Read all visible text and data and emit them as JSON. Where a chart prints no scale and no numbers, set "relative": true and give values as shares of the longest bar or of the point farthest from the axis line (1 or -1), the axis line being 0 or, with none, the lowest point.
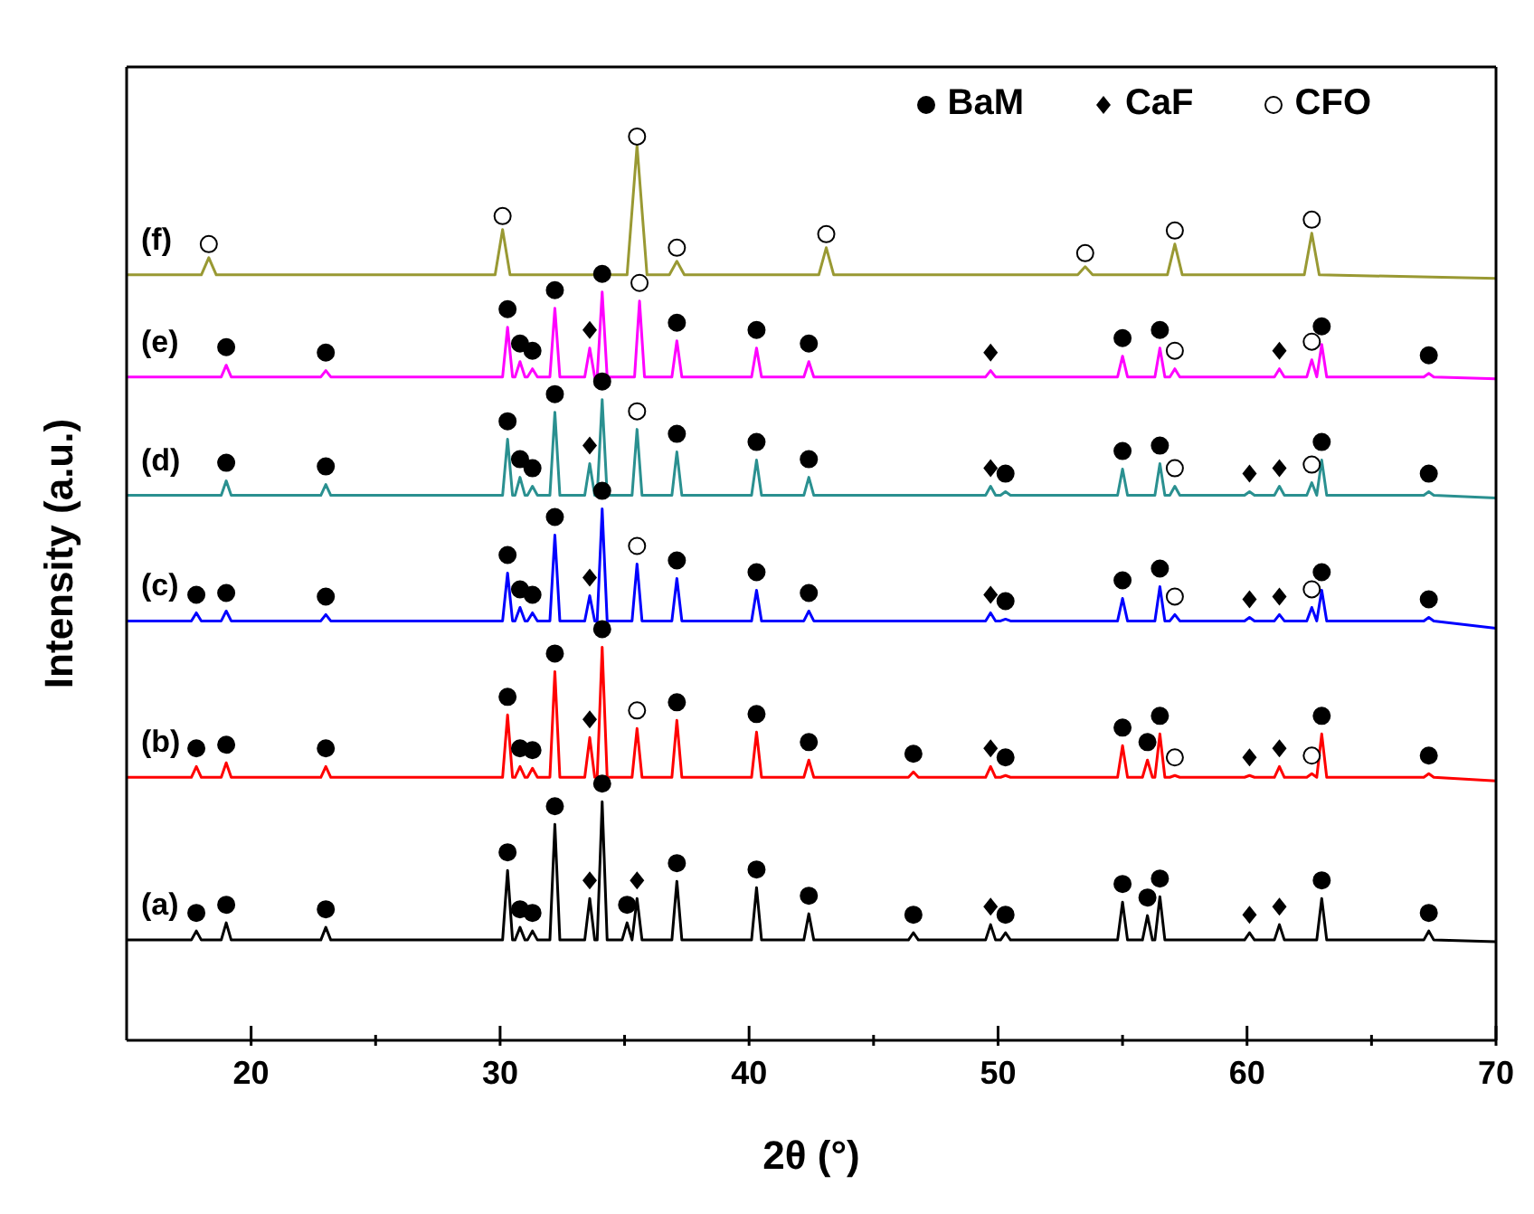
{
  "chart_data": {
    "type": "line",
    "relative": true,
    "xlabel": "2θ (°)",
    "ylabel": "Intensity (a.u.)",
    "xlim": [
      15,
      70
    ],
    "xticks": [
      20,
      {
        "value": 25,
        "label": null
      },
      30,
      {
        "value": 35,
        "label": null
      },
      40,
      {
        "value": 45,
        "label": null
      },
      50,
      {
        "value": 55,
        "label": null
      },
      60,
      {
        "value": 65,
        "label": null
      },
      70
    ],
    "legend": "top right",
    "grid": false,
    "series": [
      {
        "name": "(a)",
        "color": "#000000",
        "marker": "none",
        "x": [
          15,
          17.6,
          17.8,
          18,
          18.8,
          19,
          19.2,
          22.8,
          23,
          23.2,
          30.1,
          30.3,
          30.5,
          30.6,
          30.8,
          31,
          31.1,
          31.3,
          31.5,
          32,
          32.2,
          32.4,
          33.4,
          33.6,
          33.8,
          33.9,
          34.1,
          34.3,
          34.9,
          35.1,
          35.3,
          35.5,
          35.7,
          36.9,
          37.1,
          37.3,
          40.1,
          40.3,
          40.5,
          42.2,
          42.4,
          42.6,
          46.4,
          46.6,
          46.8,
          49.5,
          49.7,
          49.9,
          50.1,
          50.3,
          50.5,
          54.8,
          55,
          55.2,
          55.8,
          56,
          56.2,
          56.3,
          56.5,
          56.7,
          59.9,
          60.1,
          60.3,
          61.1,
          61.3,
          61.5,
          62.8,
          63,
          63.2,
          67.1,
          67.3,
          67.5,
          70
        ],
        "values": [
          0.111,
          0.111,
          0.121,
          0.111,
          0.111,
          0.13,
          0.111,
          0.111,
          0.125,
          0.111,
          0.111,
          0.188,
          0.111,
          0.111,
          0.125,
          0.111,
          0.111,
          0.121,
          0.111,
          0.111,
          0.239,
          0.111,
          0.111,
          0.157,
          0.111,
          0.111,
          0.264,
          0.111,
          0.111,
          0.13,
          0.111,
          0.157,
          0.111,
          0.111,
          0.176,
          0.111,
          0.111,
          0.169,
          0.111,
          0.111,
          0.14,
          0.111,
          0.111,
          0.119,
          0.111,
          0.111,
          0.128,
          0.111,
          0.111,
          0.119,
          0.111,
          0.111,
          0.153,
          0.111,
          0.111,
          0.138,
          0.111,
          0.111,
          0.159,
          0.111,
          0.111,
          0.119,
          0.111,
          0.111,
          0.128,
          0.111,
          0.111,
          0.157,
          0.111,
          0.111,
          0.121,
          0.111,
          0.109
        ]
      },
      {
        "name": "(b)",
        "color": "#ff0000",
        "marker": "none",
        "x": [
          15,
          17.6,
          17.8,
          18,
          18.8,
          19,
          19.2,
          22.8,
          23,
          23.2,
          30.1,
          30.3,
          30.5,
          30.6,
          30.8,
          31,
          31.1,
          31.3,
          31.5,
          32,
          32.2,
          32.4,
          33.4,
          33.6,
          33.8,
          33.9,
          34.1,
          34.3,
          35.3,
          35.5,
          35.7,
          36.9,
          37.1,
          37.3,
          40.1,
          40.3,
          40.5,
          42.2,
          42.4,
          42.6,
          46.4,
          46.6,
          46.8,
          49.5,
          49.7,
          49.9,
          50.1,
          50.3,
          50.5,
          54.8,
          55,
          55.2,
          55.8,
          56,
          56.2,
          56.3,
          56.5,
          56.7,
          56.9,
          57.1,
          57.3,
          59.9,
          60.1,
          60.3,
          61.1,
          61.3,
          61.5,
          62.4,
          62.6,
          62.8,
          63,
          63.2,
          67.1,
          67.3,
          67.5,
          70
        ],
        "values": [
          0.291,
          0.291,
          0.303,
          0.291,
          0.291,
          0.307,
          0.291,
          0.291,
          0.303,
          0.291,
          0.291,
          0.36,
          0.291,
          0.291,
          0.303,
          0.291,
          0.291,
          0.301,
          0.291,
          0.291,
          0.408,
          0.291,
          0.291,
          0.335,
          0.291,
          0.291,
          0.435,
          0.291,
          0.291,
          0.345,
          0.291,
          0.291,
          0.354,
          0.291,
          0.291,
          0.341,
          0.291,
          0.291,
          0.31,
          0.291,
          0.291,
          0.297,
          0.291,
          0.291,
          0.303,
          0.291,
          0.291,
          0.293,
          0.291,
          0.291,
          0.326,
          0.291,
          0.291,
          0.31,
          0.291,
          0.291,
          0.339,
          0.291,
          0.291,
          0.293,
          0.291,
          0.291,
          0.293,
          0.291,
          0.291,
          0.303,
          0.291,
          0.291,
          0.295,
          0.291,
          0.339,
          0.291,
          0.291,
          0.295,
          0.291,
          0.287
        ]
      },
      {
        "name": "(c)",
        "color": "#0000ff",
        "marker": "none",
        "x": [
          15,
          17.6,
          17.8,
          18,
          18.8,
          19,
          19.2,
          22.8,
          23,
          23.2,
          30.1,
          30.3,
          30.5,
          30.6,
          30.8,
          31,
          31.1,
          31.3,
          31.5,
          32,
          32.2,
          32.4,
          33.4,
          33.6,
          33.8,
          33.9,
          34.1,
          34.3,
          35.3,
          35.5,
          35.7,
          36.9,
          37.1,
          37.3,
          40.1,
          40.3,
          40.5,
          42.2,
          42.4,
          42.6,
          49.5,
          49.7,
          49.9,
          50.1,
          50.3,
          50.5,
          54.8,
          55,
          55.2,
          56.3,
          56.5,
          56.7,
          56.9,
          57.1,
          57.3,
          59.9,
          60.1,
          60.3,
          61.1,
          61.3,
          61.5,
          62.4,
          62.6,
          62.8,
          63,
          63.2,
          67.1,
          67.3,
          67.5,
          70
        ],
        "values": [
          0.464,
          0.464,
          0.473,
          0.464,
          0.464,
          0.475,
          0.464,
          0.464,
          0.471,
          0.464,
          0.464,
          0.517,
          0.464,
          0.464,
          0.479,
          0.464,
          0.464,
          0.473,
          0.464,
          0.464,
          0.559,
          0.464,
          0.464,
          0.492,
          0.464,
          0.464,
          0.588,
          0.464,
          0.464,
          0.527,
          0.464,
          0.464,
          0.511,
          0.464,
          0.464,
          0.498,
          0.464,
          0.464,
          0.475,
          0.464,
          0.464,
          0.473,
          0.464,
          0.464,
          0.466,
          0.464,
          0.464,
          0.489,
          0.464,
          0.464,
          0.502,
          0.464,
          0.464,
          0.471,
          0.464,
          0.464,
          0.468,
          0.464,
          0.464,
          0.471,
          0.464,
          0.464,
          0.479,
          0.464,
          0.498,
          0.464,
          0.464,
          0.468,
          0.464,
          0.456
        ]
      },
      {
        "name": "(d)",
        "color": "#2a9090",
        "marker": "none",
        "x": [
          15,
          18.8,
          19,
          19.2,
          22.8,
          23,
          23.2,
          30.1,
          30.3,
          30.5,
          30.6,
          30.8,
          31,
          31.1,
          31.3,
          31.5,
          32,
          32.2,
          32.4,
          33.4,
          33.6,
          33.8,
          33.9,
          34.1,
          34.3,
          35.3,
          35.5,
          35.7,
          36.9,
          37.1,
          37.3,
          40.1,
          40.3,
          40.5,
          42.2,
          42.4,
          42.6,
          49.5,
          49.7,
          49.9,
          50.1,
          50.3,
          50.5,
          54.8,
          55,
          55.2,
          56.3,
          56.5,
          56.7,
          56.9,
          57.1,
          57.3,
          59.9,
          60.1,
          60.3,
          61.1,
          61.3,
          61.5,
          62.4,
          62.6,
          62.8,
          63,
          63.2,
          67.1,
          67.3,
          67.5,
          70
        ],
        "values": [
          0.603,
          0.603,
          0.619,
          0.603,
          0.603,
          0.615,
          0.603,
          0.603,
          0.665,
          0.603,
          0.603,
          0.623,
          0.603,
          0.603,
          0.613,
          0.603,
          0.603,
          0.695,
          0.603,
          0.603,
          0.638,
          0.603,
          0.603,
          0.709,
          0.603,
          0.603,
          0.676,
          0.603,
          0.603,
          0.651,
          0.603,
          0.603,
          0.642,
          0.603,
          0.603,
          0.623,
          0.603,
          0.603,
          0.613,
          0.603,
          0.603,
          0.607,
          0.603,
          0.603,
          0.632,
          0.603,
          0.603,
          0.638,
          0.603,
          0.603,
          0.613,
          0.603,
          0.603,
          0.607,
          0.603,
          0.603,
          0.613,
          0.603,
          0.603,
          0.617,
          0.603,
          0.642,
          0.603,
          0.603,
          0.607,
          0.603,
          0.6
        ]
      },
      {
        "name": "(e)",
        "color": "#ff00ff",
        "marker": "none",
        "x": [
          15,
          18.8,
          19,
          19.2,
          22.8,
          23,
          23.2,
          30.1,
          30.3,
          30.5,
          30.6,
          30.8,
          31,
          31.1,
          31.3,
          31.5,
          32,
          32.2,
          32.4,
          33.4,
          33.6,
          33.8,
          33.9,
          34.1,
          34.3,
          35.4,
          35.6,
          35.8,
          36.9,
          37.1,
          37.3,
          40.1,
          40.3,
          40.5,
          42.2,
          42.4,
          42.6,
          49.5,
          49.7,
          49.9,
          54.8,
          55,
          55.2,
          56.3,
          56.5,
          56.7,
          56.9,
          57.1,
          57.3,
          61.1,
          61.3,
          61.5,
          62.4,
          62.6,
          62.8,
          63,
          63.2,
          67.1,
          67.3,
          67.5,
          70
        ],
        "values": [
          0.734,
          0.734,
          0.747,
          0.734,
          0.734,
          0.741,
          0.734,
          0.734,
          0.789,
          0.734,
          0.734,
          0.751,
          0.734,
          0.734,
          0.743,
          0.734,
          0.734,
          0.81,
          0.734,
          0.734,
          0.766,
          0.734,
          0.734,
          0.828,
          0.734,
          0.734,
          0.818,
          0.734,
          0.734,
          0.774,
          0.734,
          0.734,
          0.766,
          0.734,
          0.734,
          0.751,
          0.734,
          0.734,
          0.741,
          0.734,
          0.734,
          0.757,
          0.734,
          0.734,
          0.766,
          0.734,
          0.734,
          0.743,
          0.734,
          0.734,
          0.743,
          0.734,
          0.734,
          0.753,
          0.734,
          0.77,
          0.734,
          0.734,
          0.738,
          0.734,
          0.732
        ]
      },
      {
        "name": "(f)",
        "color": "#999933",
        "marker": "none",
        "x": [
          15,
          18,
          18.3,
          18.6,
          29.8,
          30.1,
          30.4,
          35.1,
          35.5,
          35.9,
          36.8,
          37.1,
          37.4,
          42.8,
          43.1,
          43.4,
          53.2,
          53.5,
          53.8,
          56.8,
          57.1,
          57.4,
          62.3,
          62.6,
          62.9,
          70
        ],
        "values": [
          0.847,
          0.847,
          0.866,
          0.847,
          0.847,
          0.897,
          0.847,
          0.847,
          0.99,
          0.847,
          0.847,
          0.862,
          0.847,
          0.847,
          0.877,
          0.847,
          0.847,
          0.856,
          0.847,
          0.847,
          0.881,
          0.847,
          0.847,
          0.893,
          0.847,
          0.843
        ]
      },
      {
        "name": "BaM",
        "type": "scatter",
        "color": "#000000",
        "marker": "circle",
        "x": [
          19,
          23,
          30.3,
          30.8,
          31.3,
          32.2,
          34.1,
          37.1,
          40.3,
          42.4,
          55,
          56.5,
          63,
          67.3,
          19,
          23,
          30.3,
          30.8,
          31.3,
          32.2,
          34.1,
          37.1,
          40.3,
          42.4,
          50.3,
          55,
          56.5,
          63,
          67.3,
          17.8,
          19,
          23,
          30.3,
          30.8,
          31.3,
          32.2,
          34.1,
          37.1,
          40.3,
          42.4,
          50.3,
          55,
          56.5,
          63,
          67.3,
          17.8,
          19,
          23,
          30.3,
          30.8,
          31.3,
          32.2,
          34.1,
          37.1,
          40.3,
          42.4,
          46.6,
          50.3,
          55,
          56,
          56.5,
          63,
          67.3,
          17.8,
          19,
          23,
          30.3,
          30.8,
          31.3,
          32.2,
          34.1,
          35.1,
          37.1,
          40.3,
          42.4,
          46.6,
          50.3,
          55,
          56,
          56.5,
          63,
          67.3
        ],
        "values": [
          0.767,
          0.761,
          0.809,
          0.771,
          0.763,
          0.83,
          0.848,
          0.794,
          0.786,
          0.771,
          0.777,
          0.786,
          0.79,
          0.758,
          0.639,
          0.635,
          0.685,
          0.643,
          0.633,
          0.715,
          0.729,
          0.671,
          0.662,
          0.643,
          0.627,
          0.652,
          0.658,
          0.662,
          0.627,
          0.493,
          0.495,
          0.491,
          0.537,
          0.499,
          0.493,
          0.579,
          0.608,
          0.531,
          0.518,
          0.495,
          0.486,
          0.509,
          0.522,
          0.518,
          0.488,
          0.323,
          0.327,
          0.323,
          0.38,
          0.323,
          0.321,
          0.428,
          0.455,
          0.374,
          0.361,
          0.33,
          0.317,
          0.313,
          0.346,
          0.33,
          0.359,
          0.359,
          0.315,
          0.141,
          0.15,
          0.145,
          0.208,
          0.145,
          0.141,
          0.259,
          0.284,
          0.15,
          0.196,
          0.189,
          0.16,
          0.139,
          0.139,
          0.173,
          0.158,
          0.179,
          0.177,
          0.141
        ]
      },
      {
        "name": "CaF",
        "type": "scatter",
        "color": "#000000",
        "marker": "diamond",
        "x": [
          33.6,
          49.7,
          61.3,
          33.6,
          49.7,
          60.1,
          61.3,
          33.6,
          49.7,
          60.1,
          61.3,
          33.6,
          49.7,
          60.1,
          61.3,
          33.6,
          35.5,
          49.7,
          60.1,
          61.3
        ],
        "values": [
          0.786,
          0.761,
          0.763,
          0.658,
          0.633,
          0.627,
          0.633,
          0.512,
          0.493,
          0.488,
          0.491,
          0.355,
          0.323,
          0.313,
          0.323,
          0.177,
          0.177,
          0.148,
          0.139,
          0.148
        ]
      },
      {
        "name": "CFO",
        "type": "scatter",
        "color": "#000000",
        "marker": "circle",
        "x": [
          18.3,
          30.1,
          35.5,
          37.1,
          43.1,
          53.5,
          57.1,
          62.6,
          35.6,
          57.1,
          62.6,
          35.5,
          57.1,
          62.6,
          35.5,
          57.1,
          62.6,
          35.5,
          57.1,
          62.6
        ],
        "values": [
          0.881,
          0.912,
          1.0,
          0.877,
          0.892,
          0.871,
          0.896,
          0.908,
          0.838,
          0.763,
          0.773,
          0.696,
          0.633,
          0.637,
          0.547,
          0.491,
          0.499,
          0.365,
          0.313,
          0.315
        ]
      }
    ]
  }
}
